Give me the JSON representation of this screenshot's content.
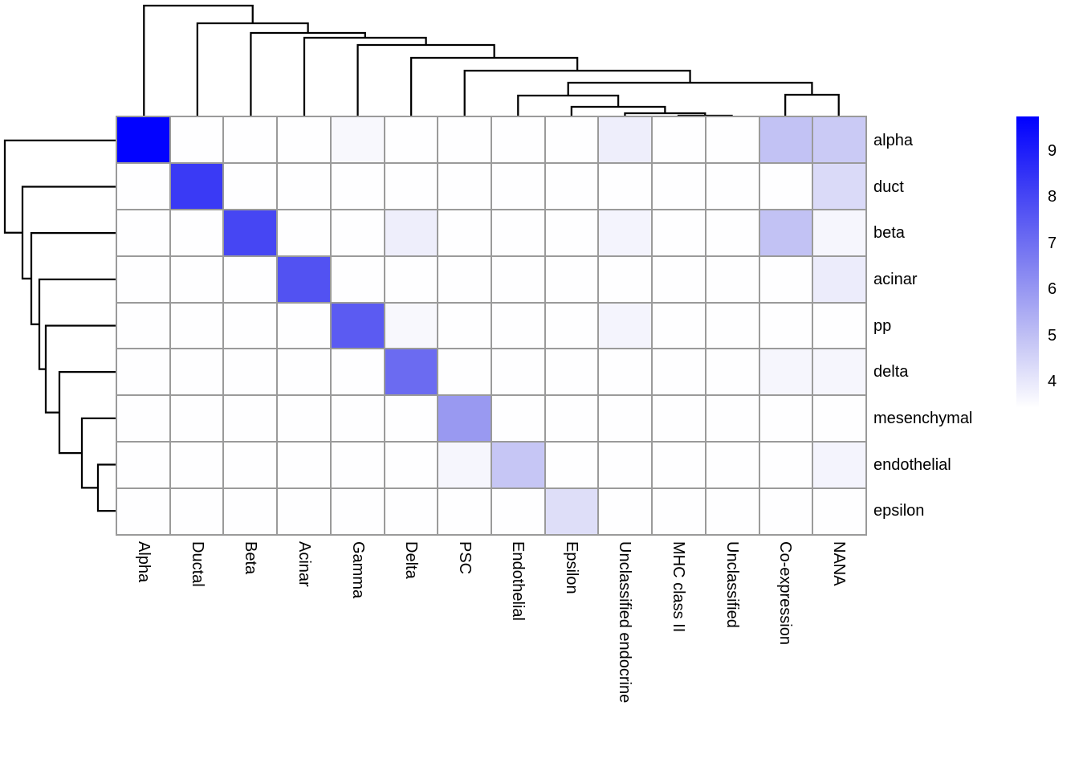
{
  "figure": {
    "kind": "clustered heatmap with row and column dendrograms",
    "background_color": "#ffffff",
    "text_color": "#000000"
  },
  "chart_data": {
    "type": "heatmap",
    "rows": [
      "alpha",
      "duct",
      "beta",
      "acinar",
      "pp",
      "delta",
      "mesenchymal",
      "endothelial",
      "epsilon"
    ],
    "columns": [
      "Alpha",
      "Ductal",
      "Beta",
      "Acinar",
      "Gamma",
      "Delta",
      "PSC",
      "Endothelial",
      "Epsilon",
      "Unclassified endocrine",
      "MHC class II",
      "Unclassified",
      "Co-expression",
      "NANA"
    ],
    "values": [
      [
        9.7,
        3.45,
        3.45,
        3.45,
        3.6,
        3.45,
        3.45,
        3.45,
        3.45,
        3.85,
        3.45,
        3.45,
        4.95,
        4.75
      ],
      [
        3.45,
        8.3,
        3.45,
        3.45,
        3.45,
        3.45,
        3.45,
        3.45,
        3.45,
        3.45,
        3.45,
        3.45,
        3.45,
        4.35
      ],
      [
        3.45,
        3.45,
        8.0,
        3.45,
        3.45,
        3.85,
        3.45,
        3.45,
        3.45,
        3.7,
        3.45,
        3.45,
        4.95,
        3.65
      ],
      [
        3.45,
        3.45,
        3.45,
        7.7,
        3.45,
        3.45,
        3.45,
        3.45,
        3.45,
        3.45,
        3.45,
        3.45,
        3.45,
        3.9
      ],
      [
        3.45,
        3.45,
        3.45,
        3.45,
        7.5,
        3.6,
        3.45,
        3.45,
        3.45,
        3.7,
        3.45,
        3.45,
        3.45,
        3.45
      ],
      [
        3.45,
        3.45,
        3.45,
        3.45,
        3.45,
        7.1,
        3.45,
        3.45,
        3.45,
        3.45,
        3.45,
        3.45,
        3.65,
        3.65
      ],
      [
        3.45,
        3.45,
        3.45,
        3.45,
        3.45,
        3.45,
        5.95,
        3.45,
        3.45,
        3.45,
        3.45,
        3.45,
        3.45,
        3.45
      ],
      [
        3.45,
        3.45,
        3.45,
        3.45,
        3.45,
        3.45,
        3.65,
        4.85,
        3.45,
        3.45,
        3.45,
        3.45,
        3.45,
        3.7
      ],
      [
        3.45,
        3.45,
        3.45,
        3.45,
        3.45,
        3.45,
        3.45,
        3.45,
        4.25,
        3.45,
        3.45,
        3.45,
        3.45,
        3.45
      ]
    ],
    "vmin": 3.43,
    "vmax": 9.74,
    "colormap": {
      "low": "#FFFFFF",
      "high": "#0000FF"
    },
    "grid_color": "#9a9a9a",
    "dendrogram_line_color": "#000000",
    "legend_ticks": [
      9,
      8,
      7,
      6,
      5,
      4
    ],
    "legend_position": "right",
    "col_dendrogram_merges": [
      [
        "MHC class II",
        "Unclassified",
        144
      ],
      [
        "Unclassified endocrine",
        0,
        141
      ],
      [
        "Epsilon",
        1,
        133
      ],
      [
        "Endothelial",
        2,
        119
      ],
      [
        "Co-expression",
        "NANA",
        118
      ],
      [
        3,
        4,
        103
      ],
      [
        "PSC",
        5,
        88
      ],
      [
        "Delta",
        6,
        72
      ],
      [
        "Gamma",
        7,
        56
      ],
      [
        "Acinar",
        8,
        47
      ],
      [
        "Beta",
        9,
        41
      ],
      [
        "Ductal",
        10,
        29
      ],
      [
        "Alpha",
        11,
        7
      ]
    ],
    "row_dendrogram_merges": [
      [
        "endothelial",
        "epsilon",
        122
      ],
      [
        "mesenchymal",
        0,
        102
      ],
      [
        "delta",
        1,
        74
      ],
      [
        "pp",
        2,
        57
      ],
      [
        "acinar",
        3,
        49
      ],
      [
        "beta",
        4,
        39
      ],
      [
        "duct",
        5,
        28
      ],
      [
        "alpha",
        6,
        6
      ]
    ]
  }
}
